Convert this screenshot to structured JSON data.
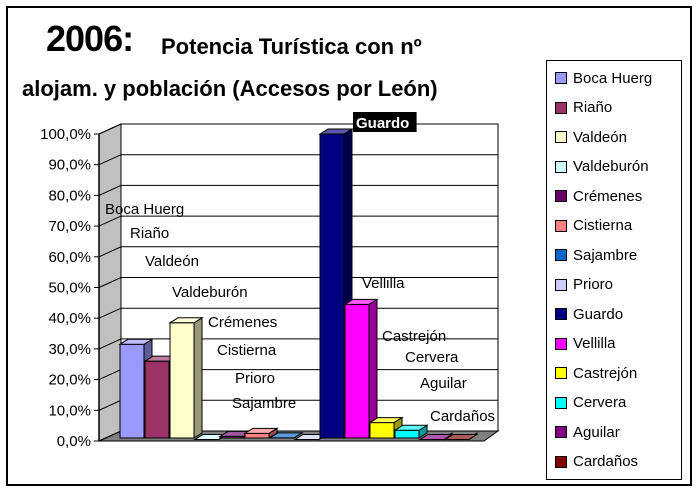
{
  "title": {
    "year": "2006:",
    "line1": "Potencia Turística con nº",
    "line2": "alojam. y población (Accesos por León)"
  },
  "chart_data": {
    "type": "bar",
    "subtype": "3d-column",
    "categories": [
      "Boca Huerg",
      "Riaño",
      "Valdeón",
      "Valdeburón",
      "Crémenes",
      "Cistierna",
      "Sajambre",
      "Prioro",
      "Guardo",
      "Vellilla",
      "Castrejón",
      "Cervera",
      "Aguilar",
      "Cardaños"
    ],
    "values": [
      31.5,
      26.0,
      38.5,
      0.5,
      1.5,
      2.5,
      1.0,
      0.5,
      100.0,
      44.5,
      6.0,
      3.5,
      0.5,
      0.5
    ],
    "colors": [
      "#9999ff",
      "#993366",
      "#ffffcc",
      "#ccffff",
      "#660066",
      "#ff8080",
      "#0066cc",
      "#ccccff",
      "#000080",
      "#ff00ff",
      "#ffff00",
      "#00ffff",
      "#800080",
      "#800000"
    ],
    "yticks": [
      "0,0%",
      "10,0%",
      "20,0%",
      "30,0%",
      "40,0%",
      "50,0%",
      "60,0%",
      "70,0%",
      "80,0%",
      "90,0%",
      "100,0%"
    ],
    "ylim": [
      0,
      100
    ],
    "grid": true,
    "legend_position": "right",
    "data_labels": [
      {
        "text": "Boca Huerg",
        "highlight": false
      },
      {
        "text": "Riaño",
        "highlight": false
      },
      {
        "text": "Valdeón",
        "highlight": false
      },
      {
        "text": "Valdeburón",
        "highlight": false
      },
      {
        "text": "Crémenes",
        "highlight": false
      },
      {
        "text": "Cistierna",
        "highlight": false
      },
      {
        "text": "Sajambre",
        "highlight": false
      },
      {
        "text": "Prioro",
        "highlight": false
      },
      {
        "text": "Guardo",
        "highlight": true
      },
      {
        "text": "Vellilla",
        "highlight": false
      },
      {
        "text": "Castrejón",
        "highlight": false
      },
      {
        "text": "Cervera",
        "highlight": false
      },
      {
        "text": "Aguilar",
        "highlight": false
      },
      {
        "text": "Cardaños",
        "highlight": false
      }
    ]
  }
}
